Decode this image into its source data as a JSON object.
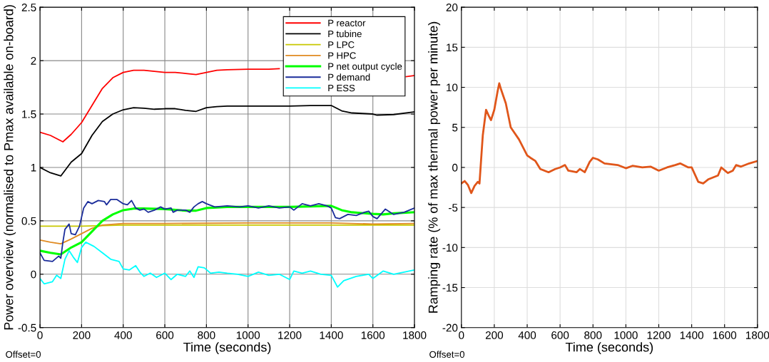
{
  "chart_data": [
    {
      "type": "line",
      "xlabel": "Time (seconds)",
      "ylabel": "Power overview (normalised to Pmax available on-board)",
      "xlim": [
        0,
        1800
      ],
      "xticks": [
        0,
        200,
        400,
        600,
        800,
        1000,
        1200,
        1400,
        1600,
        1800
      ],
      "ylim": [
        -0.5,
        2.5
      ],
      "yticks": [
        -0.5,
        0,
        0.5,
        1,
        1.5,
        2,
        2.5
      ],
      "grid": true,
      "legend": "top right",
      "annotations": [
        "Offset=0"
      ],
      "series": [
        {
          "name": "P reactor",
          "color": "#ff0000",
          "x": [
            0,
            50,
            100,
            110,
            150,
            200,
            250,
            300,
            350,
            400,
            450,
            500,
            550,
            600,
            650,
            700,
            750,
            800,
            850,
            900,
            1000,
            1100,
            1150,
            1250,
            1300,
            1400,
            1500,
            1600,
            1700,
            1750,
            1760,
            1800
          ],
          "values": [
            1.33,
            1.3,
            1.25,
            1.24,
            1.31,
            1.42,
            1.58,
            1.74,
            1.84,
            1.89,
            1.91,
            1.91,
            1.9,
            1.89,
            1.89,
            1.88,
            1.87,
            1.89,
            1.91,
            1.915,
            1.92,
            1.92,
            1.925,
            null,
            null,
            null,
            null,
            null,
            null,
            null,
            1.85,
            1.86
          ]
        },
        {
          "name": "P tubine",
          "color": "#000000",
          "x": [
            0,
            50,
            100,
            150,
            200,
            250,
            300,
            350,
            400,
            450,
            500,
            550,
            600,
            650,
            700,
            750,
            800,
            850,
            900,
            1000,
            1100,
            1200,
            1300,
            1400,
            1450,
            1500,
            1550,
            1600,
            1620,
            1700,
            1800
          ],
          "values": [
            1.0,
            0.95,
            0.92,
            1.05,
            1.13,
            1.3,
            1.43,
            1.5,
            1.54,
            1.56,
            1.555,
            1.545,
            1.55,
            1.55,
            1.535,
            1.525,
            1.56,
            1.57,
            1.575,
            1.575,
            1.575,
            1.575,
            1.58,
            1.58,
            1.53,
            1.51,
            1.505,
            1.5,
            1.49,
            1.495,
            1.52
          ]
        },
        {
          "name": "P LPC",
          "color": "#c8c800",
          "x": [
            0,
            200,
            400,
            800,
            1200,
            1600,
            1800
          ],
          "values": [
            0.45,
            0.45,
            0.46,
            0.46,
            0.46,
            0.46,
            0.46
          ]
        },
        {
          "name": "P HPC",
          "color": "#e08a20",
          "x": [
            0,
            50,
            100,
            150,
            200,
            250,
            300,
            400,
            600,
            1000,
            1400,
            1600,
            1800
          ],
          "values": [
            0.32,
            0.3,
            0.285,
            0.33,
            0.38,
            0.43,
            0.46,
            0.475,
            0.475,
            0.48,
            0.48,
            0.47,
            0.475
          ]
        },
        {
          "name": "P net output cycle",
          "color": "#00ff00",
          "x": [
            0,
            50,
            100,
            150,
            200,
            250,
            300,
            350,
            400,
            450,
            500,
            600,
            700,
            750,
            800,
            900,
            1000,
            1200,
            1300,
            1400,
            1450,
            1500,
            1600,
            1650,
            1700,
            1800
          ],
          "values": [
            0.22,
            0.2,
            0.185,
            0.25,
            0.3,
            0.4,
            0.5,
            0.56,
            0.6,
            0.615,
            0.615,
            0.61,
            0.595,
            0.595,
            0.62,
            0.63,
            0.63,
            0.63,
            0.635,
            0.64,
            0.6,
            0.58,
            0.565,
            0.56,
            0.57,
            0.58
          ]
        },
        {
          "name": "P demand",
          "color": "#1a2c9a",
          "x": [
            0,
            20,
            60,
            90,
            100,
            110,
            120,
            140,
            150,
            170,
            190,
            210,
            230,
            250,
            280,
            310,
            320,
            340,
            370,
            400,
            420,
            440,
            460,
            480,
            500,
            520,
            550,
            580,
            600,
            630,
            640,
            660,
            700,
            720,
            740,
            760,
            780,
            800,
            840,
            900,
            960,
            1000,
            1050,
            1100,
            1150,
            1200,
            1220,
            1260,
            1300,
            1340,
            1380,
            1400,
            1420,
            1440,
            1480,
            1520,
            1560,
            1580,
            1600,
            1620,
            1660,
            1700,
            1750,
            1800
          ],
          "values": [
            0.2,
            0.13,
            0.12,
            0.17,
            0.15,
            0.3,
            0.42,
            0.47,
            0.38,
            0.37,
            0.45,
            0.62,
            0.68,
            0.66,
            0.69,
            0.68,
            0.65,
            0.7,
            0.7,
            0.66,
            0.65,
            0.69,
            0.62,
            0.6,
            0.61,
            0.58,
            0.6,
            0.63,
            0.61,
            0.62,
            0.58,
            0.6,
            0.6,
            0.58,
            0.63,
            0.66,
            0.68,
            0.66,
            0.63,
            0.64,
            0.63,
            0.64,
            0.62,
            0.64,
            0.62,
            0.63,
            0.6,
            0.66,
            0.64,
            0.66,
            0.64,
            0.62,
            0.53,
            0.52,
            0.56,
            0.55,
            0.58,
            0.59,
            0.54,
            0.52,
            0.61,
            0.56,
            0.58,
            0.62
          ]
        },
        {
          "name": "P ESS",
          "color": "#00ffff",
          "x": [
            0,
            20,
            60,
            80,
            100,
            120,
            140,
            160,
            180,
            200,
            220,
            260,
            300,
            340,
            380,
            400,
            430,
            460,
            480,
            500,
            530,
            560,
            600,
            630,
            660,
            700,
            720,
            740,
            760,
            790,
            820,
            860,
            900,
            950,
            1000,
            1050,
            1100,
            1150,
            1200,
            1220,
            1260,
            1300,
            1350,
            1400,
            1430,
            1460,
            1520,
            1580,
            1600,
            1650,
            1700,
            1750,
            1800
          ],
          "values": [
            -0.04,
            -0.09,
            -0.07,
            -0.01,
            -0.04,
            0.14,
            0.22,
            0.16,
            0.11,
            0.25,
            0.3,
            0.26,
            0.2,
            0.14,
            0.12,
            0.05,
            0.04,
            0.08,
            0.02,
            -0.02,
            0.01,
            -0.03,
            0.01,
            -0.05,
            0.0,
            -0.02,
            0.03,
            -0.03,
            0.07,
            0.06,
            0.01,
            0.02,
            0.01,
            0.0,
            -0.02,
            0.02,
            -0.01,
            0.0,
            -0.05,
            0.03,
            0.01,
            0.03,
            0.0,
            -0.01,
            -0.12,
            -0.06,
            -0.02,
            0.0,
            -0.04,
            0.03,
            0.0,
            0.02,
            0.04
          ]
        }
      ]
    },
    {
      "type": "line",
      "xlabel": "Time (seconds)",
      "ylabel": "Ramping rate (% of max thermal power per minute)",
      "xlim": [
        0,
        1800
      ],
      "xticks": [
        0,
        200,
        400,
        600,
        800,
        1000,
        1200,
        1400,
        1600,
        1800
      ],
      "ylim": [
        -20,
        20
      ],
      "yticks": [
        -20,
        -15,
        -10,
        -5,
        0,
        5,
        10,
        15,
        20
      ],
      "grid": true,
      "annotations": [
        "Offset=0"
      ],
      "series": [
        {
          "color": "#e0561a",
          "x": [
            0,
            20,
            40,
            60,
            80,
            100,
            110,
            120,
            130,
            150,
            165,
            180,
            200,
            220,
            230,
            240,
            270,
            300,
            350,
            400,
            420,
            450,
            480,
            530,
            570,
            600,
            630,
            650,
            700,
            720,
            750,
            780,
            800,
            830,
            870,
            950,
            1000,
            1040,
            1100,
            1150,
            1200,
            1250,
            1300,
            1330,
            1380,
            1400,
            1440,
            1470,
            1500,
            1560,
            1580,
            1620,
            1650,
            1670,
            1700,
            1750,
            1800
          ],
          "values": [
            -2,
            -1.7,
            -2.2,
            -3.2,
            -2.3,
            -1.8,
            -2.0,
            1.0,
            4.0,
            7.2,
            6.5,
            5.9,
            7.2,
            9.5,
            10.5,
            9.8,
            8.0,
            5.0,
            3.5,
            1.5,
            1.2,
            0.8,
            -0.2,
            -0.6,
            -0.2,
            0,
            0.3,
            -0.4,
            -0.6,
            -0.2,
            -0.6,
            0.7,
            1.2,
            1.0,
            0.5,
            0.3,
            -0.1,
            0.2,
            0.0,
            0.1,
            -0.4,
            0.0,
            0.3,
            0.5,
            0.0,
            0.0,
            -1.8,
            -2.0,
            -1.5,
            -1.0,
            0.0,
            -0.7,
            -0.4,
            0.3,
            0.1,
            0.5,
            0.8
          ]
        }
      ]
    }
  ]
}
